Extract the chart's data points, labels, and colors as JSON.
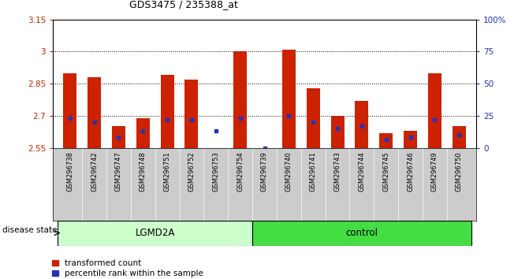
{
  "title": "GDS3475 / 235388_at",
  "samples": [
    "GSM296738",
    "GSM296742",
    "GSM296747",
    "GSM296748",
    "GSM296751",
    "GSM296752",
    "GSM296753",
    "GSM296754",
    "GSM296739",
    "GSM296740",
    "GSM296741",
    "GSM296743",
    "GSM296744",
    "GSM296745",
    "GSM296746",
    "GSM296749",
    "GSM296750"
  ],
  "red_values": [
    2.9,
    2.88,
    2.65,
    2.69,
    2.89,
    2.87,
    2.55,
    3.0,
    2.55,
    3.01,
    2.83,
    2.7,
    2.77,
    2.62,
    2.63,
    2.9,
    2.65
  ],
  "blue_values": [
    2.69,
    2.67,
    2.6,
    2.63,
    2.68,
    2.68,
    2.63,
    2.69,
    2.55,
    2.7,
    2.67,
    2.64,
    2.65,
    2.59,
    2.6,
    2.68,
    2.61
  ],
  "groups": [
    "LGMD2A",
    "LGMD2A",
    "LGMD2A",
    "LGMD2A",
    "LGMD2A",
    "LGMD2A",
    "LGMD2A",
    "LGMD2A",
    "control",
    "control",
    "control",
    "control",
    "control",
    "control",
    "control",
    "control",
    "control"
  ],
  "ymin": 2.55,
  "ymax": 3.15,
  "yticks": [
    2.55,
    2.7,
    2.85,
    3.0,
    3.15
  ],
  "ytick_labels": [
    "2.55",
    "2.7",
    "2.85",
    "3",
    "3.15"
  ],
  "right_yticks": [
    0,
    25,
    50,
    75,
    100
  ],
  "right_ytick_labels": [
    "0",
    "25",
    "50",
    "75",
    "100%"
  ],
  "bar_color": "#cc2200",
  "blue_color": "#2233bb",
  "lgmd2a_color": "#ccffcc",
  "control_color": "#44dd44",
  "background_color": "#ffffff",
  "tick_label_color_left": "#cc2200",
  "tick_label_color_right": "#2233bb",
  "bar_width": 0.55,
  "grid_dotted_color": "#000000",
  "sample_bg_color": "#cccccc",
  "legend_red_label": "transformed count",
  "legend_blue_label": "percentile rank within the sample",
  "disease_state_label": "disease state"
}
